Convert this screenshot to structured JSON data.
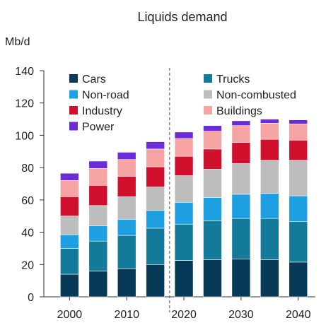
{
  "chart_data": {
    "type": "bar",
    "stacked": true,
    "title": "Liquids demand",
    "unit_label": "Mb/d",
    "ylim": [
      0,
      140
    ],
    "yticks": [
      0,
      20,
      40,
      60,
      80,
      100,
      120,
      140
    ],
    "xlim": [
      1995.5,
      2043
    ],
    "x_tick_labels": [
      "2000",
      "2010",
      "2020",
      "2030",
      "2040"
    ],
    "x_ticks": [
      2000,
      2010,
      2020,
      2030,
      2040
    ],
    "projection_divider_x": 2017.5,
    "categories": [
      "2000",
      "2005",
      "2010",
      "2015",
      "2020",
      "2025",
      "2030",
      "2035",
      "2040"
    ],
    "x": [
      2000,
      2005,
      2010,
      2015,
      2020,
      2025,
      2030,
      2035,
      2040
    ],
    "series": [
      {
        "name": "Cars",
        "color": "#063a56",
        "values": [
          14,
          16,
          17.5,
          20,
          22.5,
          23,
          23.5,
          23,
          21.5
        ]
      },
      {
        "name": "Trucks",
        "color": "#137b99",
        "values": [
          16,
          18.5,
          20.5,
          22.5,
          22.5,
          24,
          25,
          25.5,
          25
        ]
      },
      {
        "name": "Non-road",
        "color": "#1d9fe2",
        "values": [
          8.5,
          9.5,
          10,
          11,
          13.5,
          14.5,
          15,
          15.5,
          16
        ]
      },
      {
        "name": "Non-combusted",
        "color": "#bdbdbd",
        "values": [
          11.5,
          12.5,
          14,
          14.5,
          16.5,
          17.5,
          19,
          20.5,
          22
        ]
      },
      {
        "name": "Industry",
        "color": "#d0102d",
        "values": [
          12,
          12.5,
          12.5,
          12.5,
          12,
          12.5,
          13,
          13,
          12.5
        ]
      },
      {
        "name": "Buildings",
        "color": "#f5a3a3",
        "values": [
          10,
          10.5,
          10.5,
          11,
          11,
          11,
          10.5,
          10,
          10
        ]
      },
      {
        "name": "Power",
        "color": "#6c2bd9",
        "values": [
          4.5,
          4.5,
          4.5,
          4.5,
          4,
          3.5,
          3,
          2.5,
          2.5
        ]
      }
    ],
    "legend": {
      "placement": "top",
      "columns": 2,
      "order": [
        "Cars",
        "Trucks",
        "Non-road",
        "Non-combusted",
        "Industry",
        "Buildings",
        "Power"
      ]
    },
    "grid": false
  }
}
